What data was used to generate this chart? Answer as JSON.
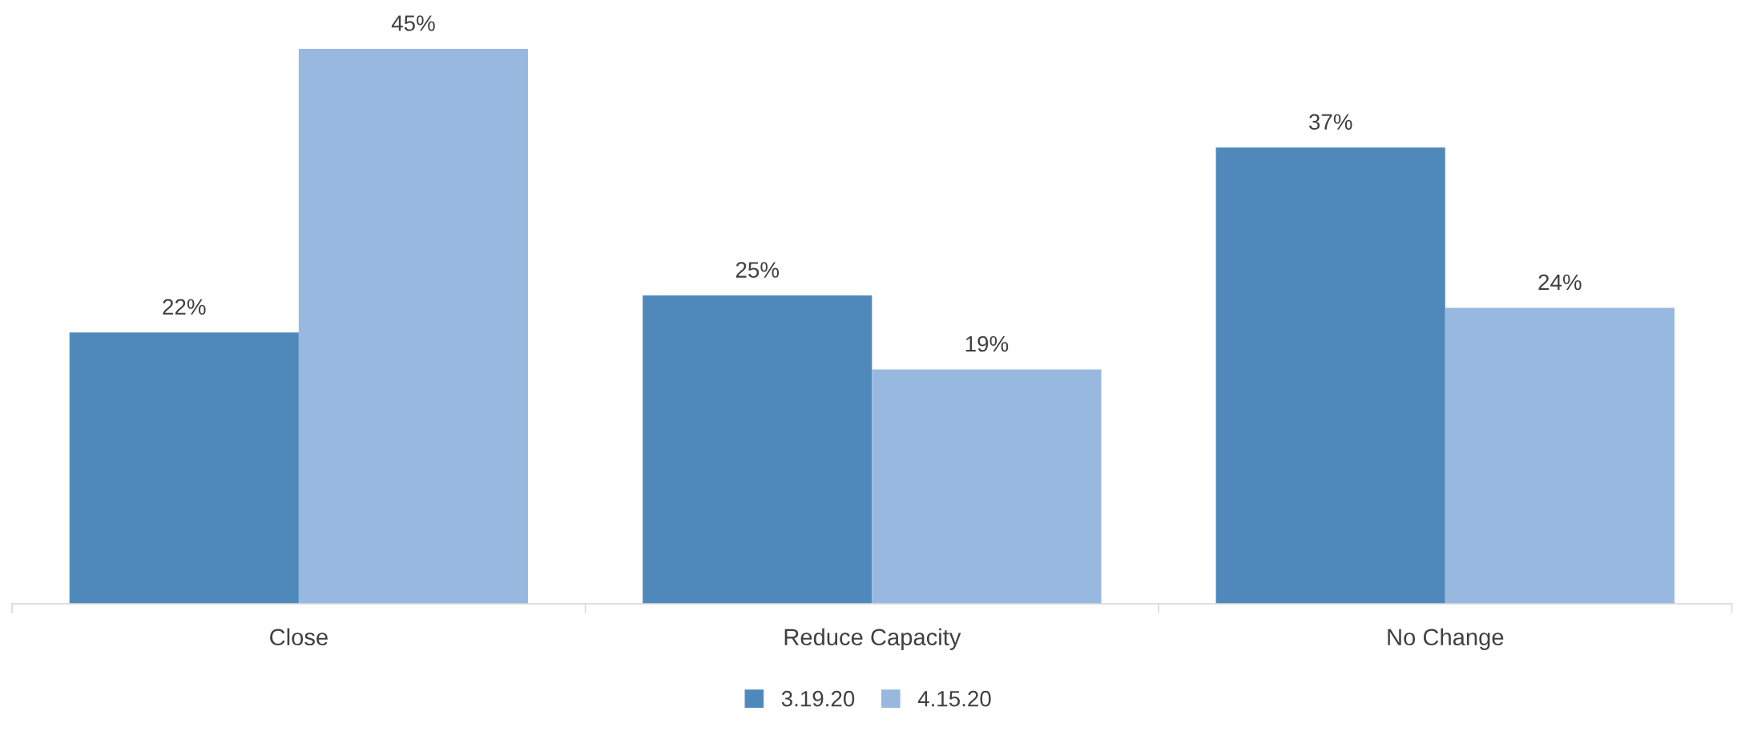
{
  "chart_data": {
    "type": "bar",
    "categories": [
      "Close",
      "Reduce Capacity",
      "No Change"
    ],
    "series": [
      {
        "name": "3.19.20",
        "color": "#4f89bc",
        "values": [
          22,
          25,
          37
        ],
        "value_labels": [
          "22%",
          "25%",
          "37%"
        ]
      },
      {
        "name": "4.15.20",
        "color": "#97b8df",
        "values": [
          45,
          19,
          24
        ],
        "value_labels": [
          "45%",
          "19%",
          "24%"
        ]
      }
    ],
    "legend": "bottom",
    "grid": false
  }
}
